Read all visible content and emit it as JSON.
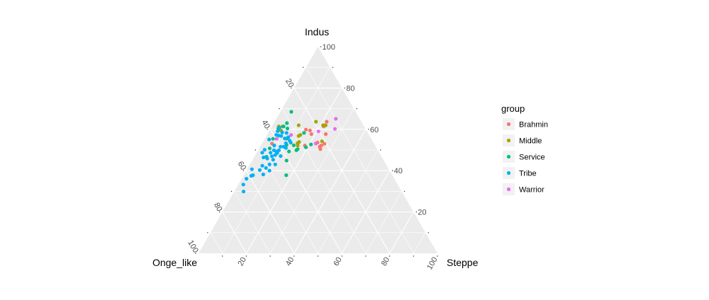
{
  "chart_data": {
    "type": "scatter",
    "subtype": "ternary",
    "axes": {
      "top": "Indus",
      "left": "Onge_like",
      "right": "Steppe"
    },
    "ticks": [
      20,
      40,
      60,
      80,
      100
    ],
    "grid": true,
    "panel_color": "#EBEBEB",
    "legend": {
      "title": "group",
      "placement": "right"
    },
    "point_fields": [
      "Steppe",
      "Indus",
      "Onge_like"
    ],
    "series": [
      {
        "name": "Brahmin",
        "color": "#F8766D",
        "points": [
          [
            21.8,
            63.7,
            14.5
          ],
          [
            15.0,
            59.9,
            25.1
          ],
          [
            16.9,
            59.5,
            23.6
          ],
          [
            18.4,
            57.7,
            23.9
          ],
          [
            24.4,
            57.7,
            17.9
          ],
          [
            23.0,
            53.6,
            23.4
          ],
          [
            24.9,
            51.6,
            23.5
          ],
          [
            25.8,
            50.4,
            23.8
          ],
          [
            25.3,
            52.2,
            22.5
          ],
          [
            26.2,
            53.0,
            20.8
          ],
          [
            18.4,
            52.2,
            29.4
          ],
          [
            4.2,
            53.1,
            42.7
          ],
          [
            21.7,
            61.4,
            16.9
          ]
        ]
      },
      {
        "name": "Middle",
        "color": "#A3A500",
        "points": [
          [
            10.9,
            62.0,
            27.1
          ],
          [
            17.3,
            63.7,
            19.0
          ],
          [
            21.1,
            62.0,
            16.9
          ],
          [
            22.2,
            62.0,
            15.8
          ],
          [
            24.6,
            54.2,
            21.2
          ],
          [
            13.5,
            56.8,
            29.7
          ],
          [
            14.8,
            53.3,
            31.9
          ],
          [
            15.2,
            53.9,
            30.9
          ],
          [
            14.0,
            57.3,
            28.7
          ],
          [
            2.9,
            61.4,
            35.7
          ],
          [
            4.5,
            61.4,
            34.1
          ],
          [
            15.4,
            52.2,
            32.4
          ],
          [
            4.9,
            59.4,
            35.7
          ]
        ]
      },
      {
        "name": "Service",
        "color": "#00BF7D",
        "points": [
          [
            4.6,
            68.5,
            26.9
          ],
          [
            5.5,
            63.0,
            31.5
          ],
          [
            7.0,
            60.4,
            32.6
          ],
          [
            3.5,
            55.4,
            41.1
          ],
          [
            4.4,
            50.8,
            44.8
          ],
          [
            9.2,
            55.5,
            35.3
          ],
          [
            10.6,
            52.5,
            36.9
          ],
          [
            13.7,
            52.3,
            34.0
          ],
          [
            20.7,
            52.7,
            26.6
          ],
          [
            19.3,
            51.3,
            29.4
          ],
          [
            16.0,
            49.9,
            34.1
          ],
          [
            13.2,
            49.3,
            37.5
          ],
          [
            14.4,
            44.9,
            40.7
          ],
          [
            17.8,
            37.8,
            44.4
          ],
          [
            5.1,
            46.7,
            48.2
          ],
          [
            3.2,
            60.4,
            36.4
          ],
          [
            15.0,
            58.3,
            26.7
          ],
          [
            16.3,
            50.4,
            33.3
          ],
          [
            4.9,
            61.4,
            33.7
          ]
        ]
      },
      {
        "name": "Tribe",
        "color": "#00B0F6",
        "points": [
          [
            3.5,
            60.8,
            35.7
          ],
          [
            3.6,
            59.1,
            37.3
          ],
          [
            3.9,
            57.3,
            38.8
          ],
          [
            5.1,
            57.0,
            37.9
          ],
          [
            6.2,
            56.8,
            37.0
          ],
          [
            5.8,
            58.5,
            35.7
          ],
          [
            7.7,
            58.3,
            34.0
          ],
          [
            9.5,
            56.2,
            34.3
          ],
          [
            10.9,
            54.5,
            34.6
          ],
          [
            9.9,
            53.3,
            36.8
          ],
          [
            11.8,
            53.6,
            34.6
          ],
          [
            8.3,
            55.6,
            36.1
          ],
          [
            2.0,
            55.1,
            42.9
          ],
          [
            5.6,
            52.2,
            42.2
          ],
          [
            6.6,
            49.9,
            43.5
          ],
          [
            7.9,
            49.3,
            42.8
          ],
          [
            5.8,
            48.7,
            45.5
          ],
          [
            2.6,
            50.1,
            47.3
          ],
          [
            2.3,
            48.7,
            49.0
          ],
          [
            4.0,
            46.4,
            49.6
          ],
          [
            5.8,
            45.9,
            48.3
          ],
          [
            7.2,
            47.0,
            45.8
          ],
          [
            8.6,
            45.3,
            46.1
          ],
          [
            10.6,
            43.0,
            46.4
          ],
          [
            8.2,
            43.0,
            48.8
          ],
          [
            5.5,
            42.4,
            52.1
          ],
          [
            7.6,
            41.3,
            51.1
          ],
          [
            5.5,
            40.3,
            54.2
          ],
          [
            9.7,
            40.0,
            50.3
          ],
          [
            2.0,
            40.7,
            57.3
          ],
          [
            3.9,
            37.8,
            58.3
          ],
          [
            3.3,
            37.5,
            59.2
          ],
          [
            8.0,
            38.2,
            53.8
          ],
          [
            2.0,
            36.1,
            61.9
          ],
          [
            2.1,
            33.3,
            64.6
          ],
          [
            3.9,
            29.9,
            66.2
          ],
          [
            8.5,
            51.6,
            39.9
          ],
          [
            10.8,
            47.1,
            42.1
          ],
          [
            11.1,
            51.0,
            37.9
          ],
          [
            9.8,
            51.6,
            38.6
          ],
          [
            8.7,
            49.9,
            41.4
          ],
          [
            8.3,
            47.6,
            44.1
          ],
          [
            8.7,
            48.7,
            42.9
          ]
        ]
      },
      {
        "name": "Warrior",
        "color": "#E76BF3",
        "points": [
          [
            24.9,
            65.1,
            10.0
          ],
          [
            27.0,
            60.2,
            12.8
          ],
          [
            20.7,
            59.0,
            20.3
          ],
          [
            22.5,
            53.1,
            24.4
          ],
          [
            5.0,
            55.4,
            39.6
          ],
          [
            10.1,
            57.3,
            32.6
          ]
        ]
      }
    ]
  }
}
